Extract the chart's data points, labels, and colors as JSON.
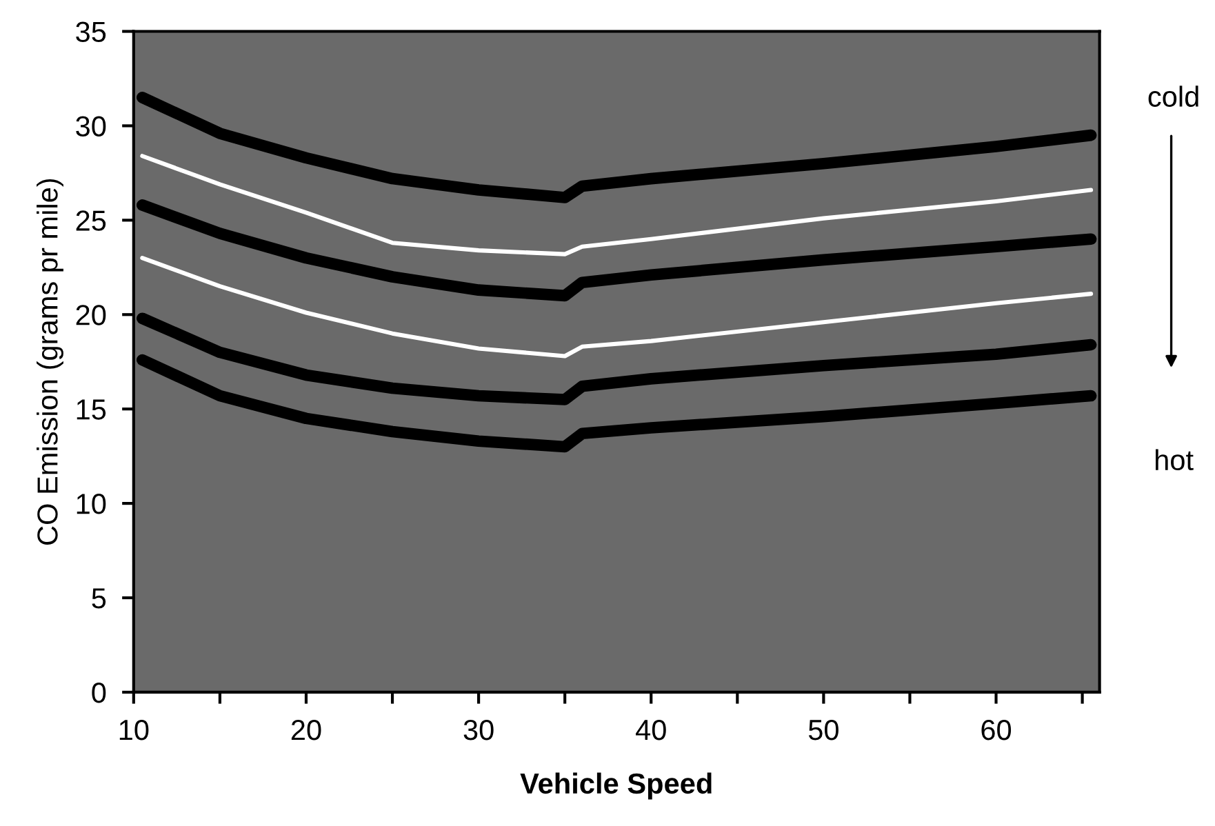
{
  "chart_data": {
    "type": "line",
    "xlabel": "Vehicle Speed",
    "ylabel": "CO Emission (grams pr mile)",
    "x": [
      10.5,
      15,
      20,
      25,
      30,
      35,
      36,
      40,
      50,
      60,
      65.5
    ],
    "series": [
      {
        "color": "#000000",
        "values": [
          31.5,
          29.6,
          28.3,
          27.2,
          26.6,
          26.2,
          26.8,
          27.2,
          28.0,
          28.9,
          29.5
        ]
      },
      {
        "color": "#ffffff",
        "values": [
          28.4,
          26.9,
          25.4,
          23.8,
          23.4,
          23.2,
          23.6,
          24.0,
          25.1,
          26.0,
          26.6
        ]
      },
      {
        "color": "#000000",
        "values": [
          25.8,
          24.3,
          23.0,
          22.0,
          21.3,
          21.0,
          21.7,
          22.1,
          22.9,
          23.6,
          24.0
        ]
      },
      {
        "color": "#ffffff",
        "values": [
          23.0,
          21.5,
          20.1,
          19.0,
          18.2,
          17.8,
          18.3,
          18.6,
          19.6,
          20.6,
          21.1
        ]
      },
      {
        "color": "#000000",
        "values": [
          19.8,
          18.0,
          16.8,
          16.1,
          15.7,
          15.5,
          16.2,
          16.6,
          17.3,
          17.9,
          18.4
        ]
      },
      {
        "color": "#000000",
        "values": [
          17.6,
          15.7,
          14.5,
          13.8,
          13.3,
          13.0,
          13.7,
          14.0,
          14.6,
          15.3,
          15.7
        ]
      }
    ],
    "annotations": [
      "cold",
      "hot"
    ],
    "xlim": [
      10,
      66
    ],
    "ylim": [
      0,
      35
    ],
    "xticks": [
      10,
      {
        "value": 15,
        "label": null
      },
      20,
      {
        "value": 25,
        "label": null
      },
      30,
      {
        "value": 35,
        "label": null
      },
      40,
      {
        "value": 45,
        "label": null
      },
      50,
      {
        "value": 55,
        "label": null
      },
      60,
      {
        "value": 65,
        "label": null
      }
    ],
    "yticks": [
      0,
      5,
      10,
      15,
      20,
      25,
      30,
      35
    ],
    "grid": false,
    "legend": false,
    "marker": "none",
    "line_style": "solid"
  }
}
